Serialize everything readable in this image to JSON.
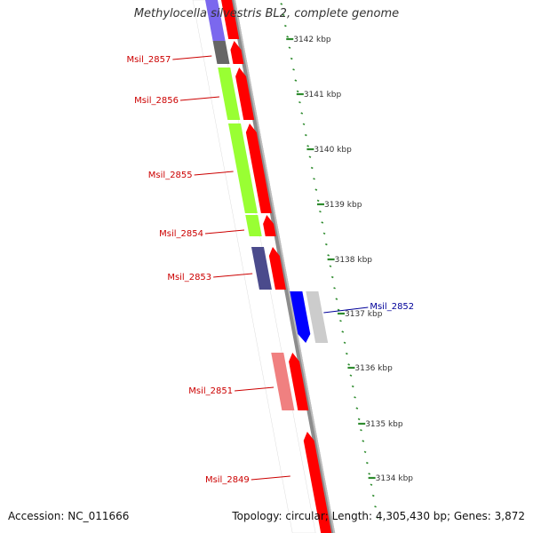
{
  "title": "Methylocella silvestris BL2, complete genome",
  "accession": "Accession: NC_011666",
  "topology": "Topology: circular; Length: 4,305,430 bp; Genes: 3,872",
  "colors": {
    "backbone": "#8c8c8c",
    "tick": "#2e8b2e",
    "forward_gene": "#ff0000",
    "reverse_gene": "#0000ff",
    "forward_label": "#cc0000",
    "reverse_label": "#000099"
  },
  "scale": {
    "unit": "kbp",
    "major_ticks": [
      {
        "label": "3142 kbp"
      },
      {
        "label": "3141 kbp"
      },
      {
        "label": "3140 kbp"
      },
      {
        "label": "3139 kbp"
      },
      {
        "label": "3138 kbp"
      },
      {
        "label": "3137 kbp"
      },
      {
        "label": "3136 kbp"
      },
      {
        "label": "3135 kbp"
      },
      {
        "label": "3134 kbp"
      }
    ]
  },
  "genes": [
    {
      "label": "Msil_2857",
      "strand": "forward",
      "cog_color": "#666666"
    },
    {
      "label": "Msil_2856",
      "strand": "forward",
      "cog_color": "#99ff33"
    },
    {
      "label": "Msil_2855",
      "strand": "forward",
      "cog_color": "#99ff33"
    },
    {
      "label": "Msil_2854",
      "strand": "forward",
      "cog_color": "#99ff33"
    },
    {
      "label": "Msil_2853",
      "strand": "forward",
      "cog_color": "#4b4b8c"
    },
    {
      "label": "Msil_2852",
      "strand": "reverse",
      "cog_color": "#cccccc"
    },
    {
      "label": "Msil_2851",
      "strand": "forward",
      "cog_color": "#f08080"
    },
    {
      "label": "Msil_2849",
      "strand": "forward",
      "cog_color": ""
    }
  ]
}
